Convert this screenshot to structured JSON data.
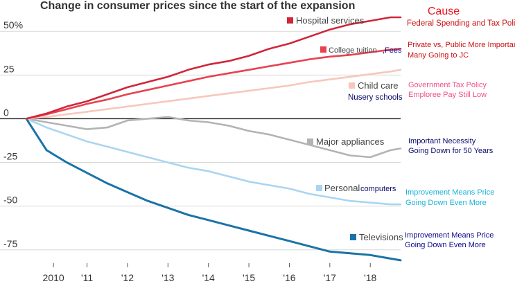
{
  "chart_data": {
    "type": "line",
    "title": "Change in consumer prices since the start of the expansion",
    "xlabel": "",
    "ylabel": "",
    "x_ticks": [
      "2010",
      "'11",
      "'12",
      "'13",
      "'14",
      "'15",
      "'16",
      "'17",
      "'18"
    ],
    "x_tick_values": [
      2010.17,
      2011.0,
      2012.0,
      2013.0,
      2014.0,
      2015.0,
      2016.0,
      2017.0,
      2018.0
    ],
    "xlim": [
      2009.5,
      2018.75
    ],
    "y_ticks": [
      "50%",
      "25",
      "0",
      "-25",
      "-50",
      "-75"
    ],
    "y_tick_values": [
      50,
      25,
      0,
      -25,
      -50,
      -75
    ],
    "ylim": [
      -85,
      60
    ],
    "grid": "horizontal",
    "x": [
      2009.5,
      2010.0,
      2010.5,
      2011.0,
      2011.5,
      2012.0,
      2012.5,
      2013.0,
      2013.5,
      2014.0,
      2014.5,
      2015.0,
      2015.5,
      2016.0,
      2016.5,
      2017.0,
      2017.5,
      2018.0,
      2018.5,
      2018.75
    ],
    "series": [
      {
        "name": "Hospital services",
        "color": "#d0263a",
        "values": [
          0,
          3,
          7,
          10,
          14,
          18,
          21,
          24,
          28,
          31,
          33,
          36,
          40,
          43,
          47,
          51,
          54,
          56,
          58,
          58
        ]
      },
      {
        "name": "College tuition",
        "color": "#e8424f",
        "values": [
          0,
          2.5,
          5.5,
          8.5,
          11,
          14,
          16.5,
          19,
          21.5,
          24,
          26,
          28,
          30,
          32,
          34,
          35.5,
          36.5,
          38,
          39.5,
          40
        ]
      },
      {
        "name": "Child care",
        "color": "#f7c7bd",
        "values": [
          0,
          1,
          2.5,
          4,
          5.5,
          7,
          8.5,
          10,
          11.5,
          13,
          14.5,
          16,
          17.5,
          19,
          21,
          22.5,
          24,
          25.5,
          27,
          28
        ]
      },
      {
        "name": "Major appliances",
        "color": "#b3b3b3",
        "values": [
          0,
          -2,
          -4,
          -6,
          -5,
          -1,
          0,
          1,
          -1,
          -2,
          -4,
          -7,
          -9,
          -12,
          -15,
          -18,
          -21,
          -22,
          -18,
          -17
        ]
      },
      {
        "name": "Personal",
        "color": "#a9d5f2",
        "values": [
          0,
          -5,
          -9,
          -13,
          -16,
          -19,
          -22,
          -25,
          -28,
          -30,
          -33,
          -36,
          -38,
          -40,
          -43,
          -45,
          -47,
          -48,
          -49,
          -49
        ]
      },
      {
        "name": "Televisions",
        "color": "#1a73a7",
        "values": [
          0,
          -18,
          -25,
          -31,
          -37,
          -42,
          -47,
          -51,
          -55,
          -58,
          -61,
          -64,
          -67,
          -70,
          -73,
          -76,
          -77,
          -78,
          -80,
          -81
        ]
      }
    ],
    "series_labels": {
      "hospital": "Hospital services",
      "college": "College tuition",
      "college_extra": ",Fees",
      "childcare": "Child care",
      "childcare_extra": "Nusery schools",
      "appliances": "Major appliances",
      "personal": "Personal",
      "personal_extra": "computers",
      "tv": "Televisions"
    },
    "annotations": {
      "cause_title": "Cause",
      "hospital_note": "Federal Spending and Tax Policy",
      "college_note_1": "Private vs, Public More Important",
      "college_note_2": "Many Going to JC",
      "childcare_note_1": "Government Tax Policy",
      "childcare_note_2": "Emploree Pay Still Low",
      "appliances_note_1": "Important Necessity",
      "appliances_note_2": "Going Down for 50 Years",
      "personal_note_1": "Improvement Means Price",
      "personal_note_2": "Going Down Even More",
      "tv_note_1": "Improvement Means Price",
      "tv_note_2": "Going Down Even More"
    },
    "annotation_colors": {
      "cause": "#e8141e",
      "red": "#cc1010",
      "pink": "#f0508a",
      "navy": "#0a0a6e",
      "cyan": "#1ab4d8",
      "blue": "#0a0a8c"
    }
  }
}
